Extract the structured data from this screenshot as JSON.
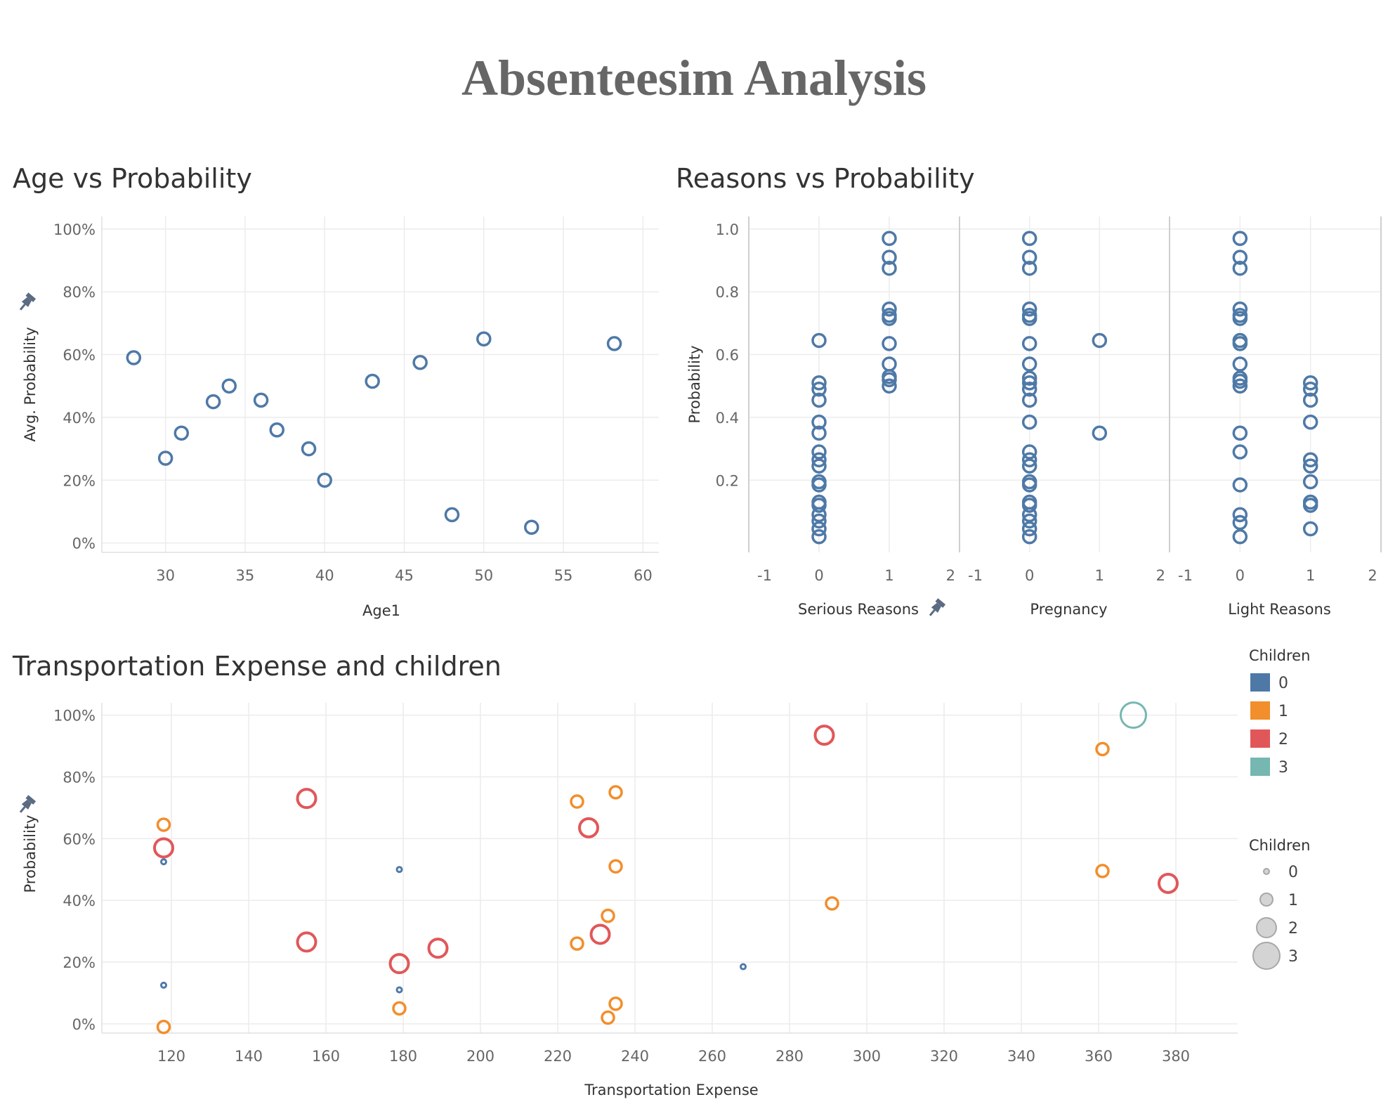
{
  "title": "Absenteesim Analysis",
  "chart_data": [
    {
      "type": "scatter",
      "title": "Age vs Probability",
      "xlabel": "Age1",
      "ylabel": "Avg. Probability",
      "xlim": [
        26,
        61
      ],
      "ylim": [
        -0.03,
        1.04
      ],
      "x_ticks": [
        30,
        35,
        40,
        45,
        50,
        55,
        60
      ],
      "y_ticks": [
        0,
        0.2,
        0.4,
        0.6,
        0.8,
        1.0
      ],
      "y_tick_labels": [
        "0%",
        "20%",
        "40%",
        "60%",
        "80%",
        "100%"
      ],
      "grid": true,
      "color": "#4e79a7",
      "points": [
        {
          "x": 28,
          "y": 0.59
        },
        {
          "x": 30,
          "y": 0.27
        },
        {
          "x": 31,
          "y": 0.35
        },
        {
          "x": 33,
          "y": 0.45
        },
        {
          "x": 34,
          "y": 0.5
        },
        {
          "x": 36,
          "y": 0.455
        },
        {
          "x": 37,
          "y": 0.36
        },
        {
          "x": 39,
          "y": 0.3
        },
        {
          "x": 40,
          "y": 0.2
        },
        {
          "x": 43,
          "y": 0.515
        },
        {
          "x": 46,
          "y": 0.575
        },
        {
          "x": 48,
          "y": 0.09
        },
        {
          "x": 50,
          "y": 0.65
        },
        {
          "x": 53,
          "y": 0.05
        },
        {
          "x": 58.2,
          "y": 0.635
        }
      ]
    },
    {
      "type": "scatter",
      "title": "Reasons vs Probability",
      "ylabel": "Probability",
      "xlim": [
        -1,
        2
      ],
      "ylim": [
        -0.03,
        1.04
      ],
      "x_ticks": [
        -1,
        0,
        1,
        2
      ],
      "y_ticks": [
        0.2,
        0.4,
        0.6,
        0.8,
        1.0
      ],
      "y_tick_labels": [
        "0.2",
        "0.4",
        "0.6",
        "0.8",
        "1.0"
      ],
      "grid": true,
      "color": "#4e79a7",
      "panels": [
        {
          "name": "Serious Reasons",
          "points": [
            {
              "x": 0,
              "y": 0.645
            },
            {
              "x": 0,
              "y": 0.51
            },
            {
              "x": 0,
              "y": 0.49
            },
            {
              "x": 0,
              "y": 0.455
            },
            {
              "x": 0,
              "y": 0.385
            },
            {
              "x": 0,
              "y": 0.35
            },
            {
              "x": 0,
              "y": 0.29
            },
            {
              "x": 0,
              "y": 0.265
            },
            {
              "x": 0,
              "y": 0.245
            },
            {
              "x": 0,
              "y": 0.195
            },
            {
              "x": 0,
              "y": 0.185
            },
            {
              "x": 0,
              "y": 0.13
            },
            {
              "x": 0,
              "y": 0.12
            },
            {
              "x": 0,
              "y": 0.09
            },
            {
              "x": 0,
              "y": 0.07
            },
            {
              "x": 0,
              "y": 0.045
            },
            {
              "x": 0,
              "y": 0.02
            },
            {
              "x": 1,
              "y": 0.97
            },
            {
              "x": 1,
              "y": 0.91
            },
            {
              "x": 1,
              "y": 0.875
            },
            {
              "x": 1,
              "y": 0.745
            },
            {
              "x": 1,
              "y": 0.725
            },
            {
              "x": 1,
              "y": 0.715
            },
            {
              "x": 1,
              "y": 0.635
            },
            {
              "x": 1,
              "y": 0.57
            },
            {
              "x": 1,
              "y": 0.53
            },
            {
              "x": 1,
              "y": 0.52
            },
            {
              "x": 1,
              "y": 0.5
            }
          ]
        },
        {
          "name": "Pregnancy",
          "points": [
            {
              "x": 0,
              "y": 0.97
            },
            {
              "x": 0,
              "y": 0.91
            },
            {
              "x": 0,
              "y": 0.875
            },
            {
              "x": 0,
              "y": 0.745
            },
            {
              "x": 0,
              "y": 0.725
            },
            {
              "x": 0,
              "y": 0.715
            },
            {
              "x": 0,
              "y": 0.635
            },
            {
              "x": 0,
              "y": 0.57
            },
            {
              "x": 0,
              "y": 0.525
            },
            {
              "x": 0,
              "y": 0.51
            },
            {
              "x": 0,
              "y": 0.49
            },
            {
              "x": 0,
              "y": 0.455
            },
            {
              "x": 0,
              "y": 0.385
            },
            {
              "x": 0,
              "y": 0.29
            },
            {
              "x": 0,
              "y": 0.265
            },
            {
              "x": 0,
              "y": 0.245
            },
            {
              "x": 0,
              "y": 0.195
            },
            {
              "x": 0,
              "y": 0.185
            },
            {
              "x": 0,
              "y": 0.13
            },
            {
              "x": 0,
              "y": 0.12
            },
            {
              "x": 0,
              "y": 0.09
            },
            {
              "x": 0,
              "y": 0.07
            },
            {
              "x": 0,
              "y": 0.045
            },
            {
              "x": 0,
              "y": 0.02
            },
            {
              "x": 1,
              "y": 0.645
            },
            {
              "x": 1,
              "y": 0.35
            }
          ]
        },
        {
          "name": "Light Reasons",
          "points": [
            {
              "x": 0,
              "y": 0.97
            },
            {
              "x": 0,
              "y": 0.91
            },
            {
              "x": 0,
              "y": 0.875
            },
            {
              "x": 0,
              "y": 0.745
            },
            {
              "x": 0,
              "y": 0.725
            },
            {
              "x": 0,
              "y": 0.715
            },
            {
              "x": 0,
              "y": 0.645
            },
            {
              "x": 0,
              "y": 0.635
            },
            {
              "x": 0,
              "y": 0.57
            },
            {
              "x": 0,
              "y": 0.525
            },
            {
              "x": 0,
              "y": 0.515
            },
            {
              "x": 0,
              "y": 0.5
            },
            {
              "x": 0,
              "y": 0.35
            },
            {
              "x": 0,
              "y": 0.29
            },
            {
              "x": 0,
              "y": 0.185
            },
            {
              "x": 0,
              "y": 0.09
            },
            {
              "x": 0,
              "y": 0.065
            },
            {
              "x": 0,
              "y": 0.02
            },
            {
              "x": 1,
              "y": 0.51
            },
            {
              "x": 1,
              "y": 0.49
            },
            {
              "x": 1,
              "y": 0.455
            },
            {
              "x": 1,
              "y": 0.385
            },
            {
              "x": 1,
              "y": 0.265
            },
            {
              "x": 1,
              "y": 0.245
            },
            {
              "x": 1,
              "y": 0.195
            },
            {
              "x": 1,
              "y": 0.13
            },
            {
              "x": 1,
              "y": 0.12
            },
            {
              "x": 1,
              "y": 0.045
            }
          ]
        }
      ]
    },
    {
      "type": "scatter",
      "title": "Transportation Expense and children",
      "xlabel": "Transportation Expense",
      "ylabel": "Probability",
      "xlim": [
        102,
        396
      ],
      "ylim": [
        -0.03,
        1.04
      ],
      "x_ticks": [
        120,
        140,
        160,
        180,
        200,
        220,
        240,
        260,
        280,
        300,
        320,
        340,
        360,
        380
      ],
      "y_ticks": [
        0,
        0.2,
        0.4,
        0.6,
        0.8,
        1.0
      ],
      "y_tick_labels": [
        "0%",
        "20%",
        "40%",
        "60%",
        "80%",
        "100%"
      ],
      "grid": true,
      "color_legend_title": "Children",
      "size_legend_title": "Children",
      "colors": {
        "0": "#4e79a7",
        "1": "#f28e2b",
        "2": "#e15759",
        "3": "#76b7b2"
      },
      "legend_values": [
        "0",
        "1",
        "2",
        "3"
      ],
      "points": [
        {
          "x": 118,
          "y": 0.645,
          "children": 1
        },
        {
          "x": 118,
          "y": 0.57,
          "children": 2
        },
        {
          "x": 118,
          "y": 0.525,
          "children": 0
        },
        {
          "x": 118,
          "y": 0.125,
          "children": 0
        },
        {
          "x": 118,
          "y": -0.01,
          "children": 1
        },
        {
          "x": 155,
          "y": 0.73,
          "children": 2
        },
        {
          "x": 155,
          "y": 0.265,
          "children": 2
        },
        {
          "x": 179,
          "y": 0.5,
          "children": 0
        },
        {
          "x": 179,
          "y": 0.195,
          "children": 2
        },
        {
          "x": 179,
          "y": 0.11,
          "children": 0
        },
        {
          "x": 179,
          "y": 0.05,
          "children": 1
        },
        {
          "x": 189,
          "y": 0.245,
          "children": 2
        },
        {
          "x": 225,
          "y": 0.72,
          "children": 1
        },
        {
          "x": 225,
          "y": 0.26,
          "children": 1
        },
        {
          "x": 228,
          "y": 0.635,
          "children": 2
        },
        {
          "x": 231,
          "y": 0.29,
          "children": 2
        },
        {
          "x": 233,
          "y": 0.35,
          "children": 1
        },
        {
          "x": 233,
          "y": 0.02,
          "children": 1
        },
        {
          "x": 235,
          "y": 0.75,
          "children": 1
        },
        {
          "x": 235,
          "y": 0.51,
          "children": 1
        },
        {
          "x": 235,
          "y": 0.065,
          "children": 1
        },
        {
          "x": 268,
          "y": 0.185,
          "children": 0
        },
        {
          "x": 289,
          "y": 0.935,
          "children": 2
        },
        {
          "x": 291,
          "y": 0.39,
          "children": 1
        },
        {
          "x": 361,
          "y": 0.89,
          "children": 1
        },
        {
          "x": 361,
          "y": 0.495,
          "children": 1
        },
        {
          "x": 369,
          "y": 1.0,
          "children": 3
        },
        {
          "x": 378,
          "y": 0.455,
          "children": 2
        }
      ]
    }
  ]
}
